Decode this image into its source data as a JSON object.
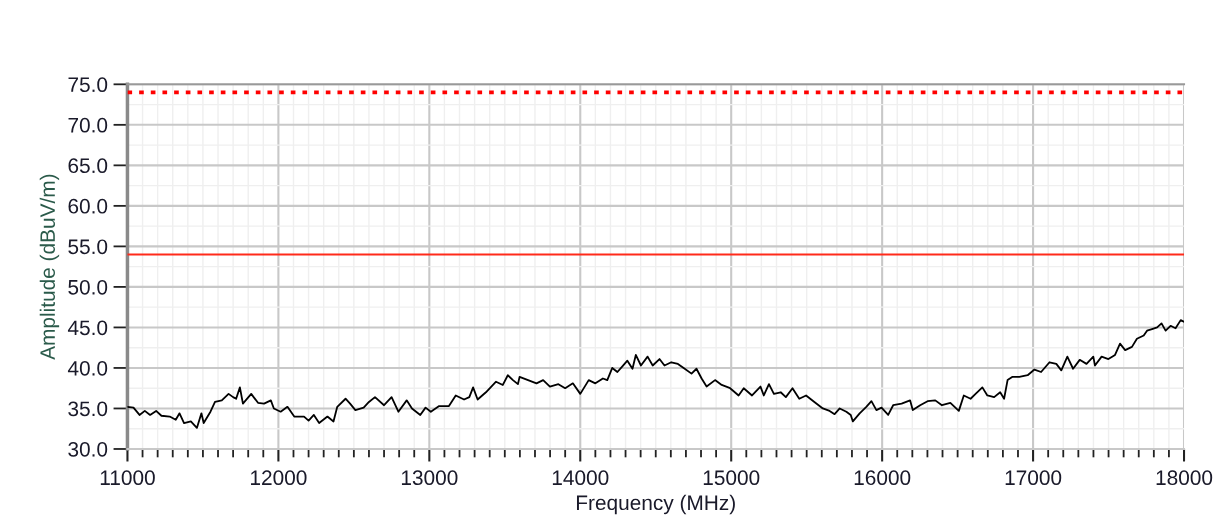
{
  "chart_data": {
    "type": "line",
    "xlabel": "Frequency (MHz)",
    "ylabel": "Amplitude (dBuV/m)",
    "xlim": [
      11000,
      18000
    ],
    "xticks": [
      11000,
      12000,
      13000,
      14000,
      15000,
      16000,
      17000,
      18000
    ],
    "ylim": [
      30,
      75
    ],
    "yticks": [
      {
        "value": 30,
        "label": "30.0"
      },
      {
        "value": 35,
        "label": "35.0"
      },
      {
        "value": 40,
        "label": "40.0"
      },
      {
        "value": 45,
        "label": "45.0"
      },
      {
        "value": 50,
        "label": "50.0"
      },
      {
        "value": 55,
        "label": "55.0"
      },
      {
        "value": 60,
        "label": "60.0"
      },
      {
        "value": 65,
        "label": "65.0"
      },
      {
        "value": 70,
        "label": "70.0"
      },
      {
        "value": 75,
        "label": "75.0"
      }
    ],
    "grid": true,
    "ref_lines": [
      {
        "axis": "y",
        "value": 54,
        "color": "#ff2a1a",
        "line_style": "solid"
      },
      {
        "axis": "y",
        "value": 74,
        "color": "#ff0000",
        "line_style": "dotted"
      }
    ],
    "x": [
      11000,
      11040,
      11080,
      11115,
      11150,
      11190,
      11225,
      11280,
      11320,
      11345,
      11375,
      11420,
      11460,
      11490,
      11505,
      11550,
      11580,
      11625,
      11670,
      11700,
      11720,
      11745,
      11765,
      11820,
      11865,
      11905,
      11950,
      11970,
      12015,
      12060,
      12105,
      12170,
      12200,
      12235,
      12270,
      12325,
      12365,
      12390,
      12445,
      12475,
      12510,
      12565,
      12600,
      12640,
      12700,
      12750,
      12795,
      12850,
      12885,
      12940,
      12975,
      13010,
      13065,
      13130,
      13175,
      13230,
      13265,
      13290,
      13320,
      13375,
      13442,
      13487,
      13520,
      13554,
      13587,
      13598,
      13654,
      13710,
      13754,
      13799,
      13855,
      13900,
      13951,
      14000,
      14056,
      14100,
      14150,
      14179,
      14212,
      14246,
      14279,
      14312,
      14346,
      14368,
      14402,
      14446,
      14480,
      14525,
      14558,
      14603,
      14647,
      14692,
      14737,
      14770,
      14804,
      14837,
      14893,
      14937,
      14993,
      15049,
      15083,
      15138,
      15194,
      15216,
      15250,
      15283,
      15328,
      15362,
      15406,
      15451,
      15496,
      15551,
      15607,
      15652,
      15685,
      15719,
      15763,
      15792,
      15806,
      15851,
      15895,
      15929,
      15962,
      15996,
      16040,
      16073,
      16129,
      16185,
      16203,
      16252,
      16301,
      16352,
      16396,
      16452,
      16508,
      16541,
      16586,
      16619,
      16664,
      16697,
      16742,
      16782,
      16808,
      16831,
      16864,
      16909,
      16964,
      17009,
      17053,
      17109,
      17154,
      17187,
      17227,
      17265,
      17309,
      17354,
      17399,
      17410,
      17454,
      17499,
      17543,
      17576,
      17610,
      17655,
      17688,
      17733,
      17755,
      17788,
      17822,
      17851,
      17878,
      17911,
      17944,
      17978,
      18000
    ],
    "series": [
      {
        "color": "#000000",
        "values": [
          35.2,
          35.1,
          34.2,
          34.7,
          34.2,
          34.7,
          34.1,
          34.0,
          33.6,
          34.4,
          33.2,
          33.4,
          32.6,
          34.4,
          33.2,
          34.6,
          35.8,
          36.0,
          36.8,
          36.4,
          36.2,
          37.6,
          35.6,
          36.8,
          35.7,
          35.6,
          36.0,
          35.0,
          34.6,
          35.2,
          34.0,
          34.0,
          33.5,
          34.2,
          33.2,
          34.0,
          33.4,
          35.2,
          36.2,
          35.6,
          34.8,
          35.1,
          35.8,
          36.4,
          35.4,
          36.4,
          34.6,
          36.0,
          35.0,
          34.2,
          35.1,
          34.6,
          35.3,
          35.3,
          36.6,
          36.1,
          36.4,
          37.6,
          36.1,
          37.0,
          38.3,
          37.9,
          39.1,
          38.5,
          38.0,
          38.9,
          38.5,
          38.1,
          38.5,
          37.7,
          38.0,
          37.5,
          38.1,
          36.8,
          38.5,
          38.1,
          38.7,
          38.5,
          40.0,
          39.5,
          40.2,
          40.9,
          39.9,
          41.6,
          40.3,
          41.4,
          40.3,
          41.1,
          40.3,
          40.7,
          40.5,
          39.9,
          39.3,
          39.9,
          38.7,
          37.7,
          38.5,
          37.9,
          37.5,
          36.6,
          37.5,
          36.6,
          37.7,
          36.6,
          38.0,
          36.8,
          37.0,
          36.4,
          37.5,
          36.2,
          36.6,
          35.8,
          35.0,
          34.7,
          34.3,
          35.0,
          34.6,
          34.2,
          33.4,
          34.4,
          35.2,
          35.9,
          34.8,
          35.1,
          34.2,
          35.4,
          35.6,
          36.0,
          34.8,
          35.4,
          35.9,
          36.0,
          35.4,
          35.7,
          34.7,
          36.6,
          36.2,
          36.8,
          37.6,
          36.6,
          36.4,
          37.0,
          36.2,
          38.5,
          38.9,
          38.9,
          39.1,
          39.8,
          39.5,
          40.7,
          40.5,
          39.7,
          41.4,
          39.9,
          41.0,
          40.5,
          41.4,
          40.3,
          41.4,
          41.1,
          41.6,
          43.0,
          42.2,
          42.6,
          43.6,
          44.0,
          44.6,
          44.8,
          45.0,
          45.5,
          44.6,
          45.2,
          44.9,
          45.9,
          45.7
        ]
      }
    ]
  }
}
